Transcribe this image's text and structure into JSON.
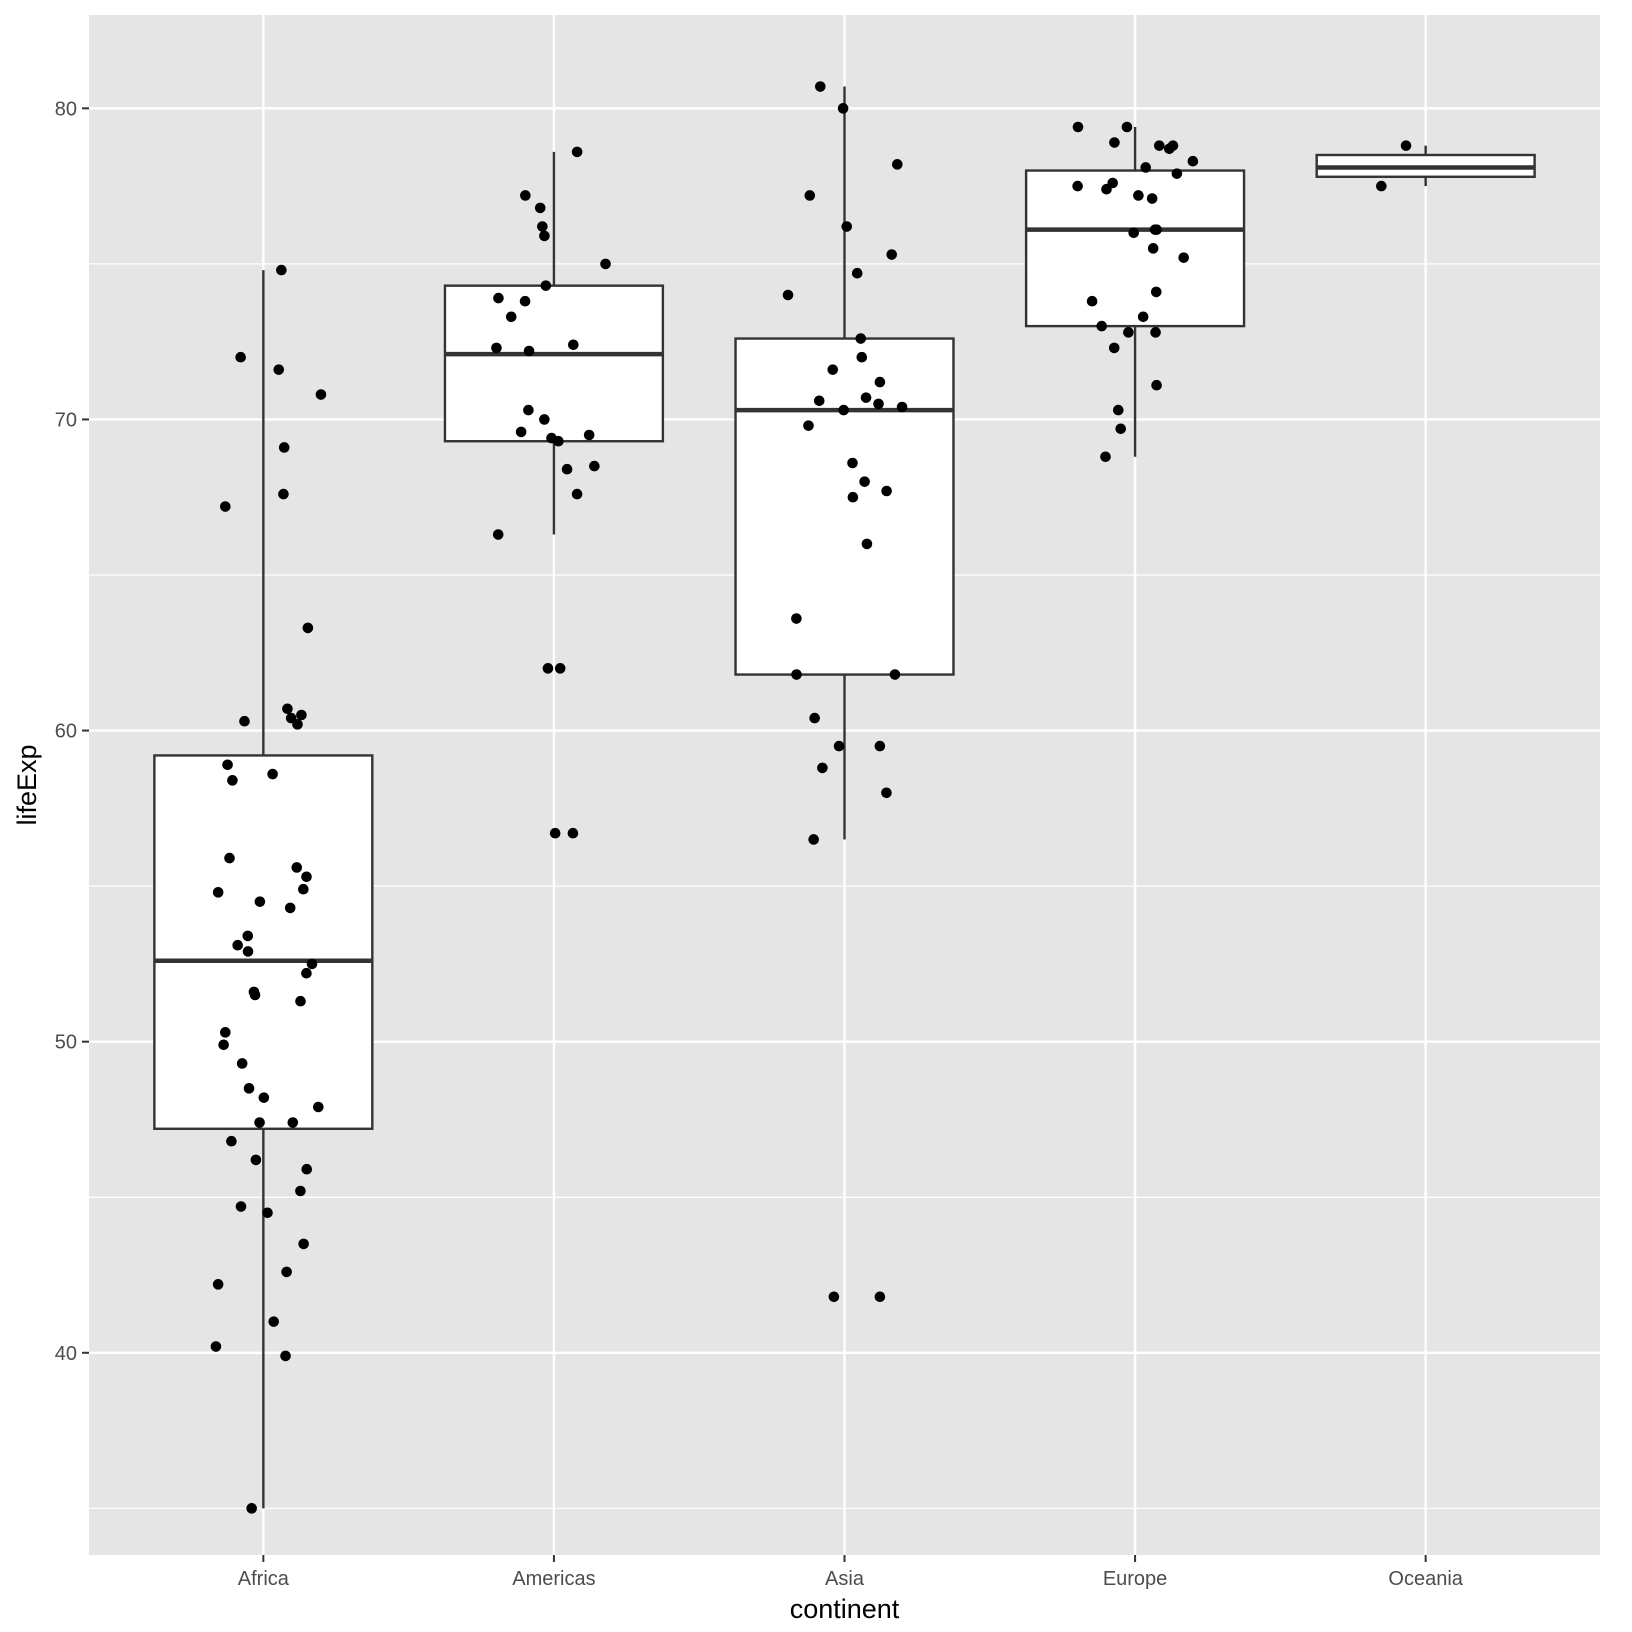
{
  "chart_data": {
    "type": "boxplot",
    "title": "",
    "xlabel": "continent",
    "ylabel": "lifeExp",
    "ylim": [
      33.5,
      83
    ],
    "yticks": [
      40,
      50,
      60,
      70,
      80
    ],
    "grid": true,
    "legend": "none",
    "colors": {
      "panel": "#e5e5e5",
      "grid": "#ffffff",
      "box_fill": "#ffffff",
      "box_stroke": "#333333",
      "point": "#000000"
    },
    "categories": [
      "Africa",
      "Americas",
      "Asia",
      "Europe",
      "Oceania"
    ],
    "boxes": [
      {
        "category": "Africa",
        "whisker_low": 35.0,
        "q1": 47.2,
        "median": 52.6,
        "q3": 59.2,
        "whisker_high": 74.8
      },
      {
        "category": "Americas",
        "whisker_low": 66.3,
        "q1": 69.3,
        "median": 72.1,
        "q3": 74.3,
        "whisker_high": 78.6
      },
      {
        "category": "Asia",
        "whisker_low": 56.5,
        "q1": 61.8,
        "median": 70.3,
        "q3": 72.6,
        "whisker_high": 80.7
      },
      {
        "category": "Europe",
        "whisker_low": 68.8,
        "q1": 73.0,
        "median": 76.1,
        "q3": 78.0,
        "whisker_high": 79.4
      },
      {
        "category": "Oceania",
        "whisker_low": 77.5,
        "q1": 77.8,
        "median": 78.1,
        "q3": 78.5,
        "whisker_high": 78.8
      }
    ],
    "points": [
      {
        "category": "Africa",
        "values": [
          74.8,
          72.0,
          71.6,
          70.8,
          69.1,
          67.6,
          67.2,
          63.3,
          60.7,
          60.5,
          60.4,
          60.3,
          60.2,
          58.9,
          58.6,
          58.4,
          55.9,
          55.6,
          55.3,
          54.9,
          54.8,
          54.5,
          54.3,
          53.4,
          53.1,
          52.9,
          52.5,
          52.2,
          51.6,
          51.5,
          51.3,
          50.3,
          49.9,
          49.3,
          48.5,
          48.2,
          47.9,
          47.4,
          47.4,
          46.8,
          46.2,
          45.9,
          45.2,
          44.7,
          44.5,
          43.5,
          42.6,
          42.2,
          41.0,
          40.2,
          39.9,
          35.0
        ]
      },
      {
        "category": "Americas",
        "values": [
          78.6,
          77.2,
          76.8,
          76.2,
          75.9,
          75.0,
          74.3,
          73.9,
          73.8,
          73.3,
          72.4,
          72.3,
          72.2,
          70.3,
          70.0,
          69.6,
          69.5,
          69.4,
          69.3,
          68.5,
          68.4,
          67.6,
          66.3,
          62.0,
          62.0,
          56.7,
          56.7
        ]
      },
      {
        "category": "Asia",
        "values": [
          80.7,
          80.0,
          78.2,
          77.2,
          76.2,
          75.3,
          74.7,
          74.0,
          72.6,
          72.0,
          71.6,
          71.2,
          70.7,
          70.6,
          70.5,
          70.4,
          70.3,
          69.8,
          68.6,
          68.0,
          67.7,
          67.5,
          66.0,
          63.6,
          61.8,
          61.8,
          60.4,
          59.5,
          59.5,
          58.8,
          58.0,
          56.5,
          41.8,
          41.8
        ]
      },
      {
        "category": "Europe",
        "values": [
          79.4,
          79.4,
          78.9,
          78.8,
          78.8,
          78.7,
          78.3,
          78.1,
          77.9,
          77.6,
          77.5,
          77.4,
          77.2,
          77.1,
          76.1,
          76.1,
          76.0,
          75.5,
          75.2,
          74.1,
          73.8,
          73.3,
          73.0,
          72.8,
          72.8,
          72.3,
          71.1,
          70.3,
          69.7,
          68.8
        ]
      },
      {
        "category": "Oceania",
        "values": [
          78.8,
          77.5
        ]
      }
    ]
  }
}
